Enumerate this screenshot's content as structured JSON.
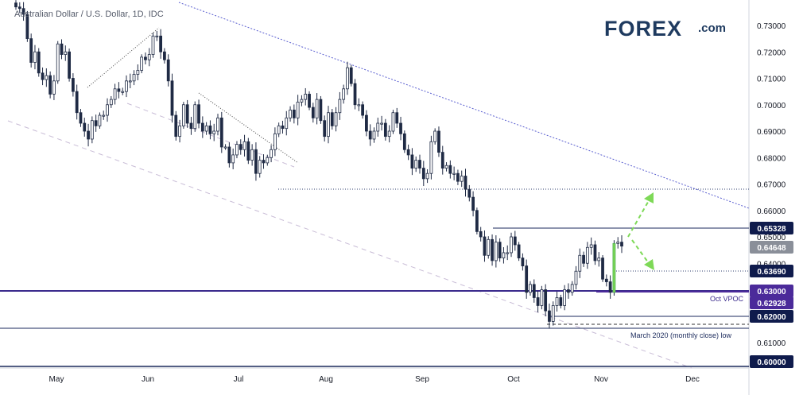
{
  "title": "Australian Dollar / U.S. Dollar, 1D, IDC",
  "logo": {
    "text": "FOREX",
    "suffix": ".com",
    "color_main": "#1e3a5f",
    "color_accent": "#8dc63f"
  },
  "colors": {
    "up": "#1f2a44",
    "down": "#1f2a44",
    "hollow": "#ffffff",
    "trend": "#5a5fd0",
    "channel": "#c8bcd6",
    "dotted": "#2c3e6e",
    "purple": "#3a2a8c",
    "navy": "#1b2a5c",
    "green_arrow": "#7ed957",
    "badge_dark": "#0f1b4c",
    "badge_purple": "#4b2a9a",
    "badge_grey": "#8a8f99"
  },
  "chart_data": {
    "type": "candlestick",
    "title": "Australian Dollar / U.S. Dollar, 1D, IDC",
    "xlabel": "",
    "ylabel": "",
    "ylim": [
      0.5975,
      0.7375
    ],
    "y_ticks": [
      "0.73000",
      "0.72000",
      "0.71000",
      "0.70000",
      "0.69000",
      "0.68000",
      "0.67000",
      "0.66000",
      "0.65000",
      "0.64000",
      "0.61000"
    ],
    "x_ticks": [
      "May",
      "Jun",
      "Jul",
      "Aug",
      "Sep",
      "Oct",
      "Nov",
      "Dec"
    ],
    "price_labels": [
      {
        "value": "0.65328",
        "style": "dark"
      },
      {
        "value": "0.64648",
        "style": "grey"
      },
      {
        "value": "0.63690",
        "style": "dark"
      },
      {
        "value": "0.63000",
        "style": "purple"
      },
      {
        "value": "0.62928",
        "style": "purple"
      },
      {
        "value": "0.62000",
        "style": "dark"
      },
      {
        "value": "0.60000",
        "style": "dark"
      }
    ],
    "annotations": [
      "Oct VPOC",
      "March 2020 (monthly close) low"
    ],
    "closes": [
      0.737,
      0.7364,
      0.7342,
      0.725,
      0.716,
      0.72,
      0.712,
      0.7095,
      0.711,
      0.704,
      0.709,
      0.723,
      0.719,
      0.72,
      0.71,
      0.705,
      0.697,
      0.693,
      0.69,
      0.687,
      0.694,
      0.692,
      0.696,
      0.696,
      0.7,
      0.702,
      0.706,
      0.705,
      0.705,
      0.709,
      0.709,
      0.7115,
      0.713,
      0.718,
      0.717,
      0.719,
      0.726,
      0.726,
      0.72,
      0.717,
      0.709,
      0.696,
      0.688,
      0.692,
      0.7,
      0.693,
      0.691,
      0.7,
      0.693,
      0.69,
      0.692,
      0.689,
      0.69,
      0.695,
      0.684,
      0.684,
      0.678,
      0.681,
      0.685,
      0.683,
      0.686,
      0.679,
      0.683,
      0.674,
      0.679,
      0.678,
      0.68,
      0.683,
      0.689,
      0.692,
      0.691,
      0.695,
      0.698,
      0.695,
      0.701,
      0.702,
      0.704,
      0.699,
      0.695,
      0.702,
      0.694,
      0.688,
      0.697,
      0.692,
      0.697,
      0.702,
      0.706,
      0.714,
      0.708,
      0.7,
      0.7,
      0.696,
      0.69,
      0.687,
      0.69,
      0.693,
      0.693,
      0.688,
      0.69,
      0.697,
      0.693,
      0.689,
      0.683,
      0.681,
      0.676,
      0.679,
      0.676,
      0.672,
      0.674,
      0.686,
      0.69,
      0.682,
      0.676,
      0.677,
      0.674,
      0.674,
      0.671,
      0.673,
      0.668,
      0.665,
      0.66,
      0.652,
      0.65,
      0.643,
      0.649,
      0.641,
      0.648,
      0.642,
      0.644,
      0.644,
      0.65,
      0.647,
      0.642,
      0.639,
      0.629,
      0.632,
      0.627,
      0.624,
      0.63,
      0.622,
      0.618,
      0.624,
      0.627,
      0.624,
      0.63,
      0.629,
      0.632,
      0.637,
      0.643,
      0.64,
      0.646,
      0.647,
      0.641,
      0.642,
      0.634,
      0.633,
      0.629,
      0.6475,
      0.648,
      0.6465
    ]
  }
}
